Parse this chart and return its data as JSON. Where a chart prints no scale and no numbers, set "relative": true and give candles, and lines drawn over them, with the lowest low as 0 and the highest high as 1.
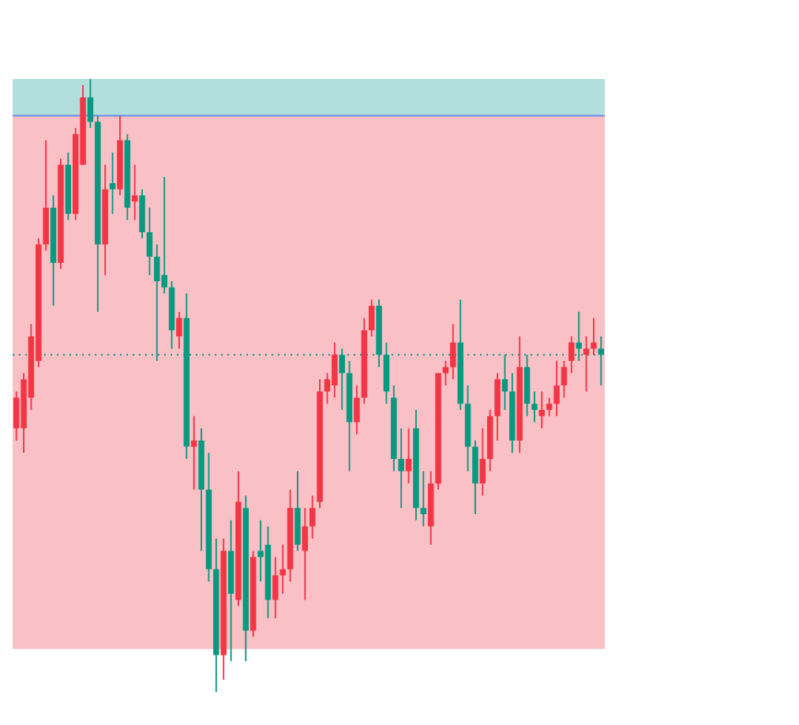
{
  "chart_data": {
    "type": "candlestick",
    "relative": true,
    "categories": [
      null,
      null,
      null,
      null,
      null,
      null,
      null,
      null,
      null,
      null,
      null,
      null,
      null,
      null,
      null,
      null,
      null,
      null,
      null,
      null,
      null,
      null,
      null,
      null,
      null,
      null,
      null,
      null,
      null,
      null,
      null,
      null,
      null,
      null,
      null,
      null,
      null,
      null,
      null,
      null,
      null,
      null,
      null,
      null,
      null,
      null,
      null,
      null,
      null,
      null,
      null,
      null,
      null,
      null,
      null,
      null,
      null,
      null,
      null,
      null,
      null,
      null,
      null,
      null,
      null,
      null,
      null,
      null,
      null,
      null,
      null,
      null,
      null,
      null,
      null,
      null,
      null,
      null,
      null,
      null
    ],
    "ohlc": [
      [
        0.43,
        0.49,
        0.41,
        0.48
      ],
      [
        0.43,
        0.52,
        0.39,
        0.51
      ],
      [
        0.48,
        0.6,
        0.46,
        0.58
      ],
      [
        0.54,
        0.74,
        0.53,
        0.73
      ],
      [
        0.73,
        0.9,
        0.72,
        0.79
      ],
      [
        0.79,
        0.81,
        0.63,
        0.7
      ],
      [
        0.7,
        0.87,
        0.69,
        0.86
      ],
      [
        0.86,
        0.88,
        0.77,
        0.78
      ],
      [
        0.78,
        0.92,
        0.77,
        0.91
      ],
      [
        0.86,
        0.99,
        0.86,
        0.97
      ],
      [
        0.97,
        1,
        0.92,
        0.93
      ],
      [
        0.93,
        0.94,
        0.62,
        0.73
      ],
      [
        0.73,
        0.86,
        0.68,
        0.82
      ],
      [
        0.83,
        0.88,
        0.78,
        0.82
      ],
      [
        0.82,
        0.94,
        0.81,
        0.9
      ],
      [
        0.9,
        0.91,
        0.77,
        0.79
      ],
      [
        0.8,
        0.86,
        0.77,
        0.81
      ],
      [
        0.81,
        0.82,
        0.74,
        0.75
      ],
      [
        0.75,
        0.79,
        0.68,
        0.71
      ],
      [
        0.71,
        0.73,
        0.54,
        0.67
      ],
      [
        0.68,
        0.84,
        0.65,
        0.66
      ],
      [
        0.66,
        0.67,
        0.56,
        0.59
      ],
      [
        0.58,
        0.62,
        0.56,
        0.61
      ],
      [
        0.61,
        0.65,
        0.38,
        0.4
      ],
      [
        0.4,
        0.45,
        0.33,
        0.41
      ],
      [
        0.41,
        0.43,
        0.23,
        0.33
      ],
      [
        0.33,
        0.39,
        0.18,
        0.2
      ],
      [
        0.2,
        0.25,
        0,
        0.06
      ],
      [
        0.06,
        0.25,
        0.02,
        0.23
      ],
      [
        0.23,
        0.28,
        0.05,
        0.16
      ],
      [
        0.15,
        0.36,
        0.14,
        0.31
      ],
      [
        0.3,
        0.32,
        0.05,
        0.1
      ],
      [
        0.1,
        0.23,
        0.09,
        0.22
      ],
      [
        0.23,
        0.28,
        0.18,
        0.22
      ],
      [
        0.24,
        0.27,
        0.12,
        0.15
      ],
      [
        0.15,
        0.22,
        0.12,
        0.19
      ],
      [
        0.19,
        0.24,
        0.16,
        0.2
      ],
      [
        0.2,
        0.33,
        0.18,
        0.3
      ],
      [
        0.3,
        0.36,
        0.23,
        0.24
      ],
      [
        0.23,
        0.3,
        0.15,
        0.27
      ],
      [
        0.27,
        0.32,
        0.25,
        0.3
      ],
      [
        0.31,
        0.51,
        0.3,
        0.49
      ],
      [
        0.49,
        0.52,
        0.47,
        0.51
      ],
      [
        0.5,
        0.57,
        0.48,
        0.55
      ],
      [
        0.55,
        0.56,
        0.46,
        0.52
      ],
      [
        0.52,
        0.54,
        0.36,
        0.44
      ],
      [
        0.44,
        0.5,
        0.42,
        0.48
      ],
      [
        0.48,
        0.61,
        0.47,
        0.59
      ],
      [
        0.59,
        0.64,
        0.58,
        0.63
      ],
      [
        0.63,
        0.64,
        0.53,
        0.55
      ],
      [
        0.55,
        0.57,
        0.47,
        0.49
      ],
      [
        0.48,
        0.5,
        0.36,
        0.38
      ],
      [
        0.38,
        0.43,
        0.3,
        0.36
      ],
      [
        0.36,
        0.43,
        0.34,
        0.38
      ],
      [
        0.43,
        0.46,
        0.28,
        0.3
      ],
      [
        0.3,
        0.36,
        0.27,
        0.29
      ],
      [
        0.27,
        0.36,
        0.24,
        0.34
      ],
      [
        0.34,
        0.52,
        0.33,
        0.52
      ],
      [
        0.52,
        0.54,
        0.5,
        0.53
      ],
      [
        0.53,
        0.6,
        0.51,
        0.57
      ],
      [
        0.57,
        0.64,
        0.46,
        0.47
      ],
      [
        0.47,
        0.5,
        0.36,
        0.4
      ],
      [
        0.4,
        0.41,
        0.29,
        0.34
      ],
      [
        0.34,
        0.43,
        0.32,
        0.38
      ],
      [
        0.38,
        0.46,
        0.36,
        0.45
      ],
      [
        0.45,
        0.52,
        0.41,
        0.51
      ],
      [
        0.51,
        0.55,
        0.46,
        0.49
      ],
      [
        0.49,
        0.52,
        0.39,
        0.41
      ],
      [
        0.41,
        0.58,
        0.39,
        0.53
      ],
      [
        0.53,
        0.55,
        0.45,
        0.47
      ],
      [
        0.47,
        0.49,
        0.44,
        0.46
      ],
      [
        0.45,
        0.49,
        0.43,
        0.46
      ],
      [
        0.46,
        0.48,
        0.45,
        0.47
      ],
      [
        0.47,
        0.54,
        0.45,
        0.5
      ],
      [
        0.5,
        0.54,
        0.48,
        0.53
      ],
      [
        0.54,
        0.58,
        0.52,
        0.57
      ],
      [
        0.57,
        0.62,
        0.54,
        0.56
      ],
      [
        0.55,
        0.58,
        0.49,
        0.56
      ],
      [
        0.56,
        0.61,
        0.55,
        0.57
      ],
      [
        0.56,
        0.58,
        0.5,
        0.55
      ]
    ],
    "colors": [
      "#f23645",
      "#f23645",
      "#f23645",
      "#f23645",
      "#f23645",
      "#089981",
      "#f23645",
      "#089981",
      "#f23645",
      "#f23645",
      "#089981",
      "#089981",
      "#f23645",
      "#089981",
      "#f23645",
      "#089981",
      "#f23645",
      "#089981",
      "#089981",
      "#089981",
      "#089981",
      "#089981",
      "#f23645",
      "#089981",
      "#f23645",
      "#089981",
      "#089981",
      "#089981",
      "#f23645",
      "#089981",
      "#f23645",
      "#089981",
      "#f23645",
      "#089981",
      "#089981",
      "#f23645",
      "#f23645",
      "#f23645",
      "#089981",
      "#f23645",
      "#f23645",
      "#f23645",
      "#f23645",
      "#f23645",
      "#089981",
      "#089981",
      "#f23645",
      "#f23645",
      "#f23645",
      "#089981",
      "#089981",
      "#089981",
      "#089981",
      "#f23645",
      "#089981",
      "#089981",
      "#f23645",
      "#f23645",
      "#f23645",
      "#f23645",
      "#089981",
      "#089981",
      "#089981",
      "#f23645",
      "#f23645",
      "#f23645",
      "#089981",
      "#089981",
      "#f23645",
      "#089981",
      "#089981",
      "#f23645",
      "#f23645",
      "#f23645",
      "#f23645",
      "#f23645",
      "#089981",
      "#f23645",
      "#f23645",
      "#089981"
    ],
    "bands": [
      {
        "axis": "y",
        "from": 0.94,
        "to": 1,
        "color": "#b2dfdb"
      },
      {
        "axis": "y",
        "from": 0.07,
        "to": 0.94,
        "color": "#f9c0c6"
      }
    ],
    "ref_lines": [
      {
        "axis": "y",
        "value": 0.94,
        "color": "#6b8cf0",
        "line_style": "solid"
      },
      {
        "axis": "y",
        "value": 0.55,
        "color": "#089981",
        "line_style": "dotted"
      }
    ]
  }
}
